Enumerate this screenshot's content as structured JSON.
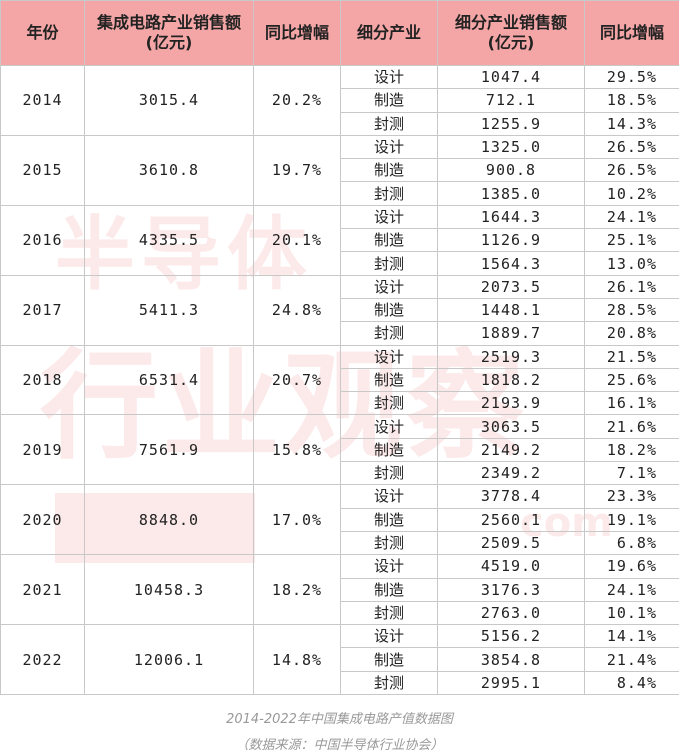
{
  "watermark": {
    "line1": "半导体",
    "line2": "行业观察",
    "suffix": "com"
  },
  "table": {
    "headers": [
      "年份",
      "集成电路产业销售额\n(亿元)",
      "同比增幅",
      "细分产业",
      "细分产业销售额\n(亿元)",
      "同比增幅"
    ],
    "years": [
      {
        "year": "2014",
        "total": "3015.4",
        "growth": "20.2%",
        "segments": [
          {
            "name": "设计",
            "sales": "1047.4",
            "growth": "29.5%"
          },
          {
            "name": "制造",
            "sales": "712.1",
            "growth": "18.5%"
          },
          {
            "name": "封测",
            "sales": "1255.9",
            "growth": "14.3%"
          }
        ]
      },
      {
        "year": "2015",
        "total": "3610.8",
        "growth": "19.7%",
        "segments": [
          {
            "name": "设计",
            "sales": "1325.0",
            "growth": "26.5%"
          },
          {
            "name": "制造",
            "sales": "900.8",
            "growth": "26.5%"
          },
          {
            "name": "封测",
            "sales": "1385.0",
            "growth": "10.2%"
          }
        ]
      },
      {
        "year": "2016",
        "total": "4335.5",
        "growth": "20.1%",
        "segments": [
          {
            "name": "设计",
            "sales": "1644.3",
            "growth": "24.1%"
          },
          {
            "name": "制造",
            "sales": "1126.9",
            "growth": "25.1%"
          },
          {
            "name": "封测",
            "sales": "1564.3",
            "growth": "13.0%"
          }
        ]
      },
      {
        "year": "2017",
        "total": "5411.3",
        "growth": "24.8%",
        "segments": [
          {
            "name": "设计",
            "sales": "2073.5",
            "growth": "26.1%"
          },
          {
            "name": "制造",
            "sales": "1448.1",
            "growth": "28.5%"
          },
          {
            "name": "封测",
            "sales": "1889.7",
            "growth": "20.8%"
          }
        ]
      },
      {
        "year": "2018",
        "total": "6531.4",
        "growth": "20.7%",
        "segments": [
          {
            "name": "设计",
            "sales": "2519.3",
            "growth": "21.5%"
          },
          {
            "name": "制造",
            "sales": "1818.2",
            "growth": "25.6%"
          },
          {
            "name": "封测",
            "sales": "2193.9",
            "growth": "16.1%"
          }
        ]
      },
      {
        "year": "2019",
        "total": "7561.9",
        "growth": "15.8%",
        "segments": [
          {
            "name": "设计",
            "sales": "3063.5",
            "growth": "21.6%"
          },
          {
            "name": "制造",
            "sales": "2149.2",
            "growth": "18.2%"
          },
          {
            "name": "封测",
            "sales": "2349.2",
            "growth": "7.1%"
          }
        ]
      },
      {
        "year": "2020",
        "total": "8848.0",
        "growth": "17.0%",
        "segments": [
          {
            "name": "设计",
            "sales": "3778.4",
            "growth": "23.3%"
          },
          {
            "name": "制造",
            "sales": "2560.1",
            "growth": "19.1%"
          },
          {
            "name": "封测",
            "sales": "2509.5",
            "growth": "6.8%"
          }
        ]
      },
      {
        "year": "2021",
        "total": "10458.3",
        "growth": "18.2%",
        "segments": [
          {
            "name": "设计",
            "sales": "4519.0",
            "growth": "19.6%"
          },
          {
            "name": "制造",
            "sales": "3176.3",
            "growth": "24.1%"
          },
          {
            "name": "封测",
            "sales": "2763.0",
            "growth": "10.1%"
          }
        ]
      },
      {
        "year": "2022",
        "total": "12006.1",
        "growth": "14.8%",
        "segments": [
          {
            "name": "设计",
            "sales": "5156.2",
            "growth": "14.1%"
          },
          {
            "name": "制造",
            "sales": "3854.8",
            "growth": "21.4%"
          },
          {
            "name": "封测",
            "sales": "2995.1",
            "growth": "8.4%"
          }
        ]
      }
    ]
  },
  "caption": {
    "title": "2014-2022年中国集成电路产值数据图",
    "source": "（数据来源：中国半导体行业协会）"
  },
  "colors": {
    "header_bg": "#f4a6a6",
    "watermark": "#ec7878",
    "caption": "#999999"
  }
}
